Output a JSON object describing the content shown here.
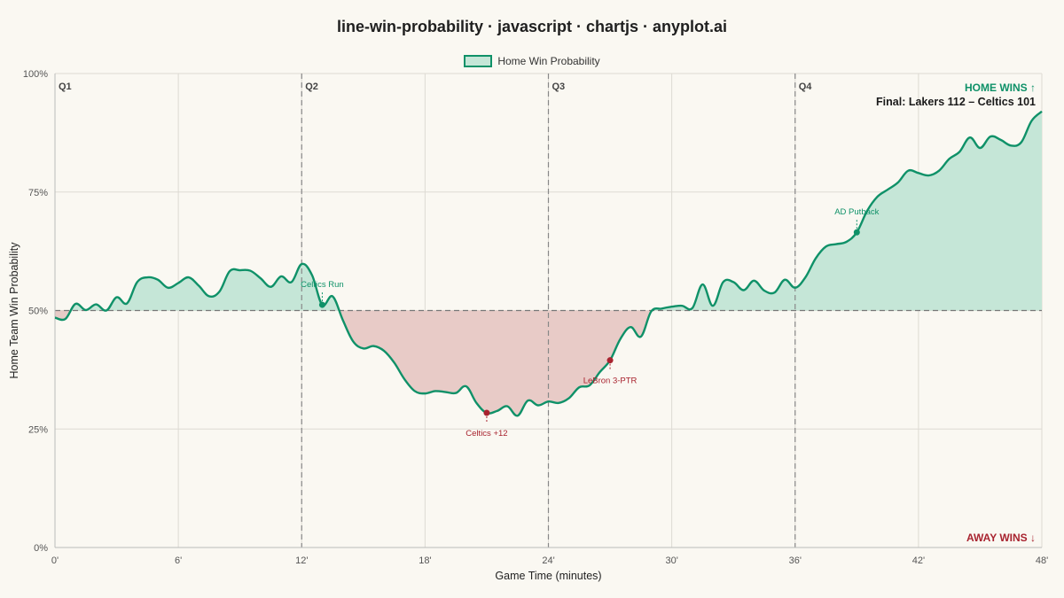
{
  "title": "line-win-probability · javascript · chartjs · anyplot.ai",
  "colors": {
    "home": "#0f9168",
    "home_fill": "#c5e6d7",
    "away": "#a8232f",
    "away_fill": "#e8cbc7",
    "background": "#faf8f2",
    "grid": "#dddad3"
  },
  "chart_data": {
    "type": "line",
    "title": "line-win-probability · javascript · chartjs · anyplot.ai",
    "xlabel": "Game Time (minutes)",
    "ylabel": "Home Team Win Probability",
    "xlim": [
      0,
      48
    ],
    "ylim": [
      0,
      100
    ],
    "x_ticks": [
      0,
      6,
      12,
      18,
      24,
      30,
      36,
      42,
      48
    ],
    "x_tick_labels": [
      "0'",
      "6'",
      "12'",
      "18'",
      "24'",
      "30'",
      "36'",
      "42'",
      "48'"
    ],
    "y_ticks": [
      0,
      25,
      50,
      75,
      100
    ],
    "y_tick_labels": [
      "0%",
      "25%",
      "50%",
      "75%",
      "100%"
    ],
    "grid": true,
    "legend_position": "top-center",
    "baseline": 50,
    "quarters": [
      {
        "label": "Q1",
        "x": 0
      },
      {
        "label": "Q2",
        "x": 12
      },
      {
        "label": "Q3",
        "x": 24
      },
      {
        "label": "Q4",
        "x": 36
      }
    ],
    "series": [
      {
        "name": "Home Win Probability",
        "x": [
          0,
          0.5,
          1,
          1.5,
          2,
          2.5,
          3,
          3.5,
          4,
          4.5,
          5,
          5.5,
          6,
          6.5,
          7,
          7.5,
          8,
          8.5,
          9,
          9.5,
          10,
          10.5,
          11,
          11.5,
          12,
          12.5,
          13,
          13.5,
          14,
          14.5,
          15,
          15.5,
          16,
          16.5,
          17,
          17.5,
          18,
          18.5,
          19,
          19.5,
          20,
          20.5,
          21,
          21.5,
          22,
          22.5,
          23,
          23.5,
          24,
          24.5,
          25,
          25.5,
          26,
          26.5,
          27,
          27.5,
          28,
          28.5,
          29,
          29.5,
          30,
          30.5,
          31,
          31.5,
          32,
          32.5,
          33,
          33.5,
          34,
          34.5,
          35,
          35.5,
          36,
          36.5,
          37,
          37.5,
          38,
          38.5,
          39,
          39.5,
          40,
          40.5,
          41,
          41.5,
          42,
          42.5,
          43,
          43.5,
          44,
          44.5,
          45,
          45.5,
          46,
          46.5,
          47,
          47.5,
          48
        ],
        "y": [
          48.5,
          48.2,
          51.4,
          50.1,
          51.3,
          50.0,
          52.8,
          51.5,
          56.0,
          57.0,
          56.5,
          54.8,
          55.8,
          57.0,
          55.2,
          53.0,
          54.0,
          58.3,
          58.5,
          58.4,
          56.8,
          55.0,
          57.2,
          56.0,
          59.8,
          57.5,
          51.2,
          53.0,
          48.0,
          43.5,
          42.0,
          42.5,
          41.5,
          39.0,
          35.5,
          33.0,
          32.5,
          33.0,
          32.8,
          32.6,
          34.0,
          30.5,
          28.4,
          28.8,
          29.8,
          27.8,
          31.0,
          30.0,
          30.8,
          30.5,
          31.5,
          33.8,
          34.2,
          37.0,
          39.5,
          44.0,
          46.5,
          44.5,
          49.8,
          50.4,
          50.8,
          51.0,
          50.5,
          55.5,
          51.0,
          56.0,
          56.0,
          54.3,
          56.3,
          54.2,
          53.8,
          56.5,
          54.8,
          57.0,
          61.0,
          63.5,
          64.0,
          64.5,
          66.5,
          71.0,
          74.0,
          75.5,
          77.0,
          79.5,
          79.0,
          78.5,
          79.5,
          82.0,
          83.5,
          86.5,
          84.3,
          86.7,
          86.0,
          84.8,
          85.5,
          90.0,
          92.0
        ]
      }
    ],
    "annotations": [
      {
        "text": "Celtics Run",
        "x": 13,
        "y": 51.2,
        "side": "home",
        "placement": "above"
      },
      {
        "text": "Celtics +12",
        "x": 21,
        "y": 28.4,
        "side": "away",
        "placement": "below"
      },
      {
        "text": "LeBron 3-PTR",
        "x": 27,
        "y": 39.5,
        "side": "away",
        "placement": "below"
      },
      {
        "text": "AD Putback",
        "x": 39,
        "y": 66.5,
        "side": "home",
        "placement": "above"
      }
    ],
    "home_wins_label": "HOME WINS ↑",
    "away_wins_label": "AWAY WINS ↓",
    "final_score": "Final: Lakers 112 – Celtics 101"
  }
}
